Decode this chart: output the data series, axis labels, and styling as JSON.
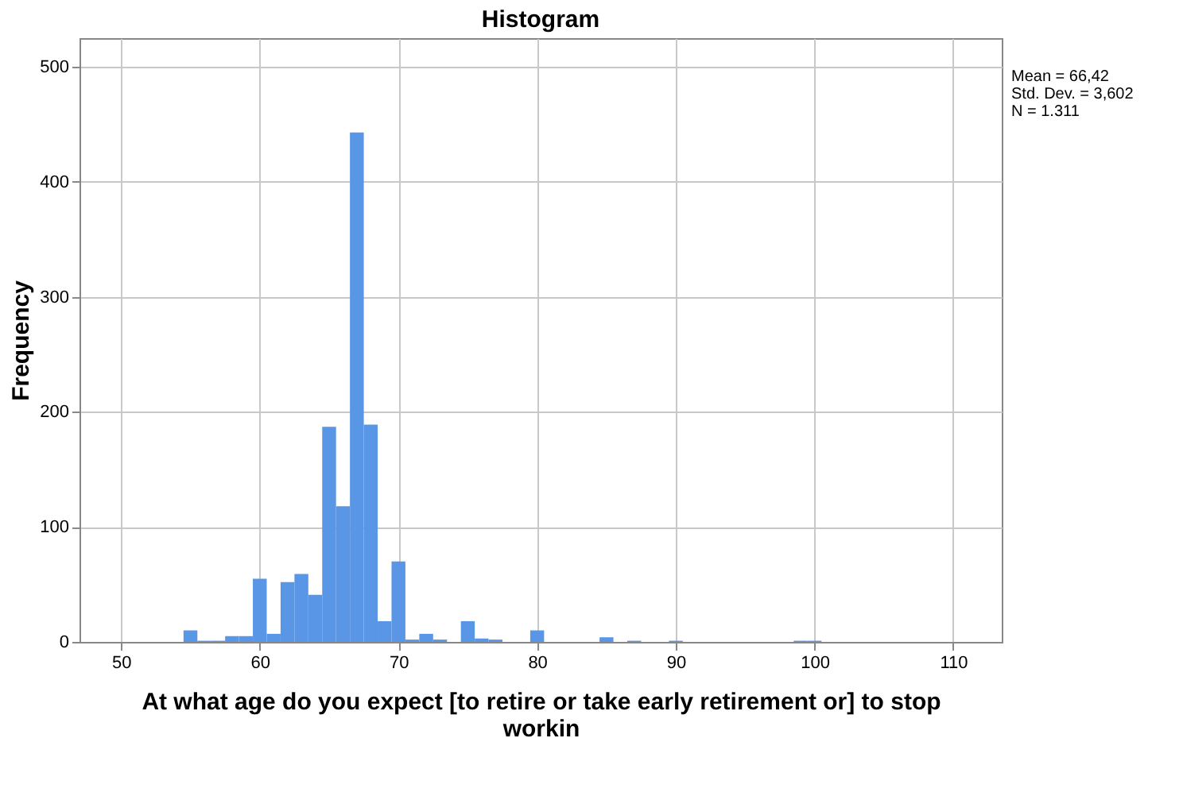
{
  "chart_data": {
    "type": "histogram",
    "title": "Histogram",
    "xlabel": "At what age do you expect [to retire or take early retirement or] to stop workin",
    "ylabel": "Frequency",
    "annotations": [
      "Mean = 66,42",
      "Std. Dev. = 3,602",
      "N = 1.311"
    ],
    "bins": [
      54.5,
      55.5,
      56.5,
      57.5,
      58.5,
      59.5,
      60.5,
      61.5,
      62.5,
      63.5,
      64.5,
      65.5,
      66.5,
      67.5,
      68.5,
      69.5,
      70.5,
      71.5,
      72.5,
      73.5,
      74.5,
      75.5,
      76.5,
      77.5,
      78.5,
      79.5,
      80.5,
      81.5,
      82.5,
      83.5,
      84.5,
      85.5,
      86.5,
      87.5,
      88.5,
      89.5,
      90.5,
      91.5,
      92.5,
      93.5,
      94.5,
      95.5,
      96.5,
      97.5,
      98.5,
      99.5,
      100.5
    ],
    "values": [
      10,
      1,
      1,
      5,
      5,
      55,
      7,
      52,
      59,
      41,
      187,
      118,
      443,
      189,
      18,
      70,
      2,
      7,
      2,
      0,
      18,
      3,
      2,
      0,
      0,
      10,
      0,
      0,
      0,
      0,
      4,
      0,
      1,
      0,
      0,
      1,
      0,
      0,
      0,
      0,
      0,
      0,
      0,
      0,
      1,
      1
    ],
    "color": "#5a96e6",
    "xlim": [
      47,
      113.5
    ],
    "xticks": [
      50,
      60,
      70,
      80,
      90,
      100,
      110
    ],
    "ylim": [
      0,
      525
    ],
    "yticks": [
      0,
      100,
      200,
      300,
      400,
      500
    ],
    "grid": true
  }
}
